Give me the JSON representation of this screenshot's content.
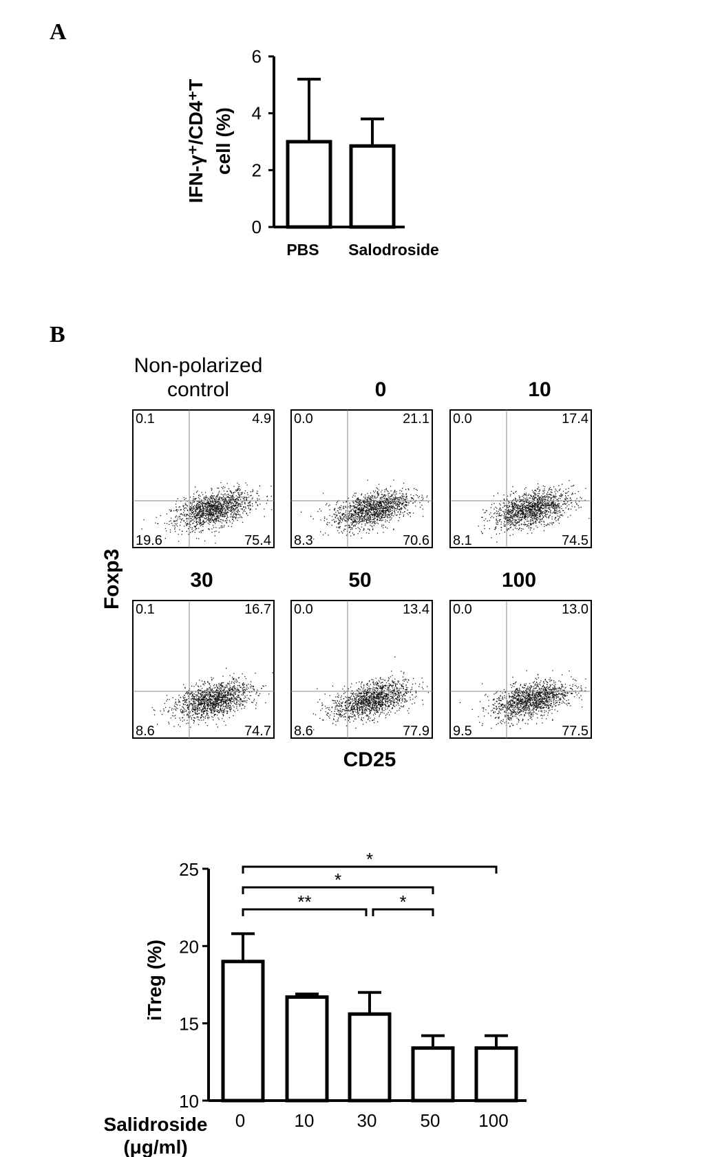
{
  "panel_a_letter": "A",
  "panel_b_letter": "B",
  "flow": {
    "y_label": "Foxp3",
    "x_label": "CD25",
    "plots": [
      {
        "title_lines": [
          "Non-polarized",
          "control"
        ],
        "ul": "0.1",
        "ur": "4.9",
        "ll": "19.6",
        "lr": "75.4"
      },
      {
        "title_lines": [
          "0"
        ],
        "ul": "0.0",
        "ur": "21.1",
        "ll": "8.3",
        "lr": "70.6"
      },
      {
        "title_lines": [
          "10"
        ],
        "ul": "0.0",
        "ur": "17.4",
        "ll": "8.1",
        "lr": "74.5"
      },
      {
        "title_lines": [
          "30"
        ],
        "ul": "0.1",
        "ur": "16.7",
        "ll": "8.6",
        "lr": "74.7"
      },
      {
        "title_lines": [
          "50"
        ],
        "ul": "0.0",
        "ur": "13.4",
        "ll": "8.6",
        "lr": "77.9"
      },
      {
        "title_lines": [
          "100"
        ],
        "ul": "0.0",
        "ur": "13.0",
        "ll": "9.5",
        "lr": "77.5"
      }
    ]
  },
  "chart_data": [
    {
      "type": "bar",
      "categories": [
        "PBS",
        "Salodroside"
      ],
      "values": [
        3.0,
        2.85
      ],
      "errors": [
        2.2,
        0.95
      ],
      "ylabel_lines": [
        "IFN-γ⁺/CD4⁺T",
        "cell (%)"
      ],
      "xlabel": "",
      "ylim": [
        0,
        6
      ],
      "yticks": [
        0,
        2,
        4,
        6
      ]
    },
    {
      "type": "bar",
      "categories": [
        "0",
        "10",
        "30",
        "50",
        "100"
      ],
      "values": [
        19.0,
        16.7,
        15.6,
        13.4,
        13.4
      ],
      "errors": [
        1.8,
        0.2,
        1.4,
        0.8,
        0.8
      ],
      "ylabel": "iTreg (%)",
      "xlabel_lines": [
        "Salidroside",
        "(μg/ml)"
      ],
      "ylim": [
        10,
        25
      ],
      "yticks": [
        10,
        15,
        20,
        25
      ],
      "significance": [
        {
          "from": "0",
          "to": "100",
          "label": "*"
        },
        {
          "from": "0",
          "to": "50",
          "label": "*"
        },
        {
          "from": "0",
          "to": "30",
          "label": "**"
        },
        {
          "from": "30",
          "to": "50",
          "label": "*"
        }
      ]
    }
  ]
}
